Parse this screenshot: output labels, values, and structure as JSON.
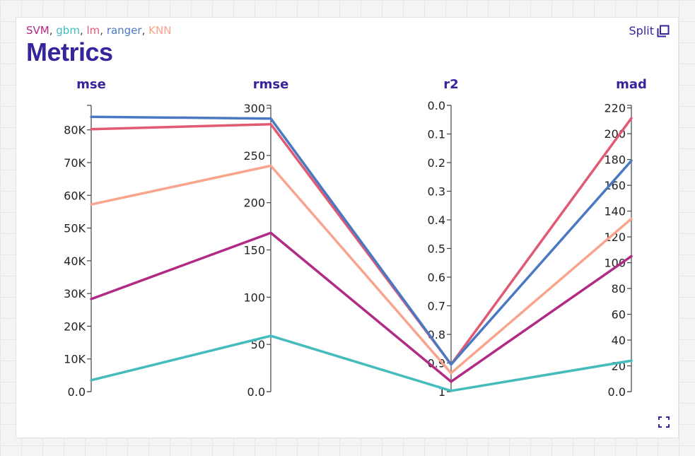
{
  "header": {
    "title": "Metrics",
    "split_label": "Split"
  },
  "icons": {
    "split": "split-window-icon",
    "expand": "fullscreen-icon"
  },
  "chart_data": {
    "type": "parallel-coordinates",
    "title": "Metrics",
    "legend_placement": "top-left",
    "series": [
      {
        "name": "SVM",
        "color": "#b02a86",
        "values": {
          "mse": 28300,
          "rmse": 168,
          "r2": 0.965,
          "mad": 105
        }
      },
      {
        "name": "gbm",
        "color": "#44bbbd",
        "values": {
          "mse": 3500,
          "rmse": 59,
          "r2": 0.997,
          "mad": 24
        }
      },
      {
        "name": "lm",
        "color": "#e05a72",
        "values": {
          "mse": 80200,
          "rmse": 283,
          "r2": 0.905,
          "mad": 212
        }
      },
      {
        "name": "ranger",
        "color": "#4a78c2",
        "values": {
          "mse": 84000,
          "rmse": 289,
          "r2": 0.905,
          "mad": 179
        }
      },
      {
        "name": "KNN",
        "color": "#f9a48c",
        "values": {
          "mse": 57200,
          "rmse": 239,
          "r2": 0.935,
          "mad": 134
        }
      }
    ],
    "axes": [
      {
        "key": "mse",
        "label": "mse",
        "min": 0,
        "max": 87500,
        "reversed": false,
        "ticks": [
          0,
          10000,
          20000,
          30000,
          40000,
          50000,
          60000,
          70000,
          80000
        ],
        "tick_labels": [
          "0.0",
          "10K",
          "20K",
          "30K",
          "40K",
          "50K",
          "60K",
          "70K",
          "80K"
        ]
      },
      {
        "key": "rmse",
        "label": "rmse",
        "min": 0,
        "max": 303,
        "reversed": false,
        "ticks": [
          0,
          50,
          100,
          150,
          200,
          250,
          300
        ],
        "tick_labels": [
          "0.0",
          "50",
          "100",
          "150",
          "200",
          "250",
          "300"
        ]
      },
      {
        "key": "r2",
        "label": "r2",
        "min": 0,
        "max": 1,
        "reversed": true,
        "ticks": [
          0,
          0.1,
          0.2,
          0.3,
          0.4,
          0.5,
          0.6,
          0.7,
          0.8,
          0.9,
          1
        ],
        "tick_labels": [
          "0.0",
          "0.1",
          "0.2",
          "0.3",
          "0.4",
          "0.5",
          "0.6",
          "0.7",
          "0.8",
          "0.9",
          "1"
        ]
      },
      {
        "key": "mad",
        "label": "mad",
        "min": 0,
        "max": 222,
        "reversed": false,
        "ticks": [
          0,
          20,
          40,
          60,
          80,
          100,
          120,
          140,
          160,
          180,
          200,
          220
        ],
        "tick_labels": [
          "0.0",
          "20",
          "40",
          "60",
          "80",
          "100",
          "120",
          "140",
          "160",
          "180",
          "200",
          "220"
        ]
      }
    ]
  }
}
